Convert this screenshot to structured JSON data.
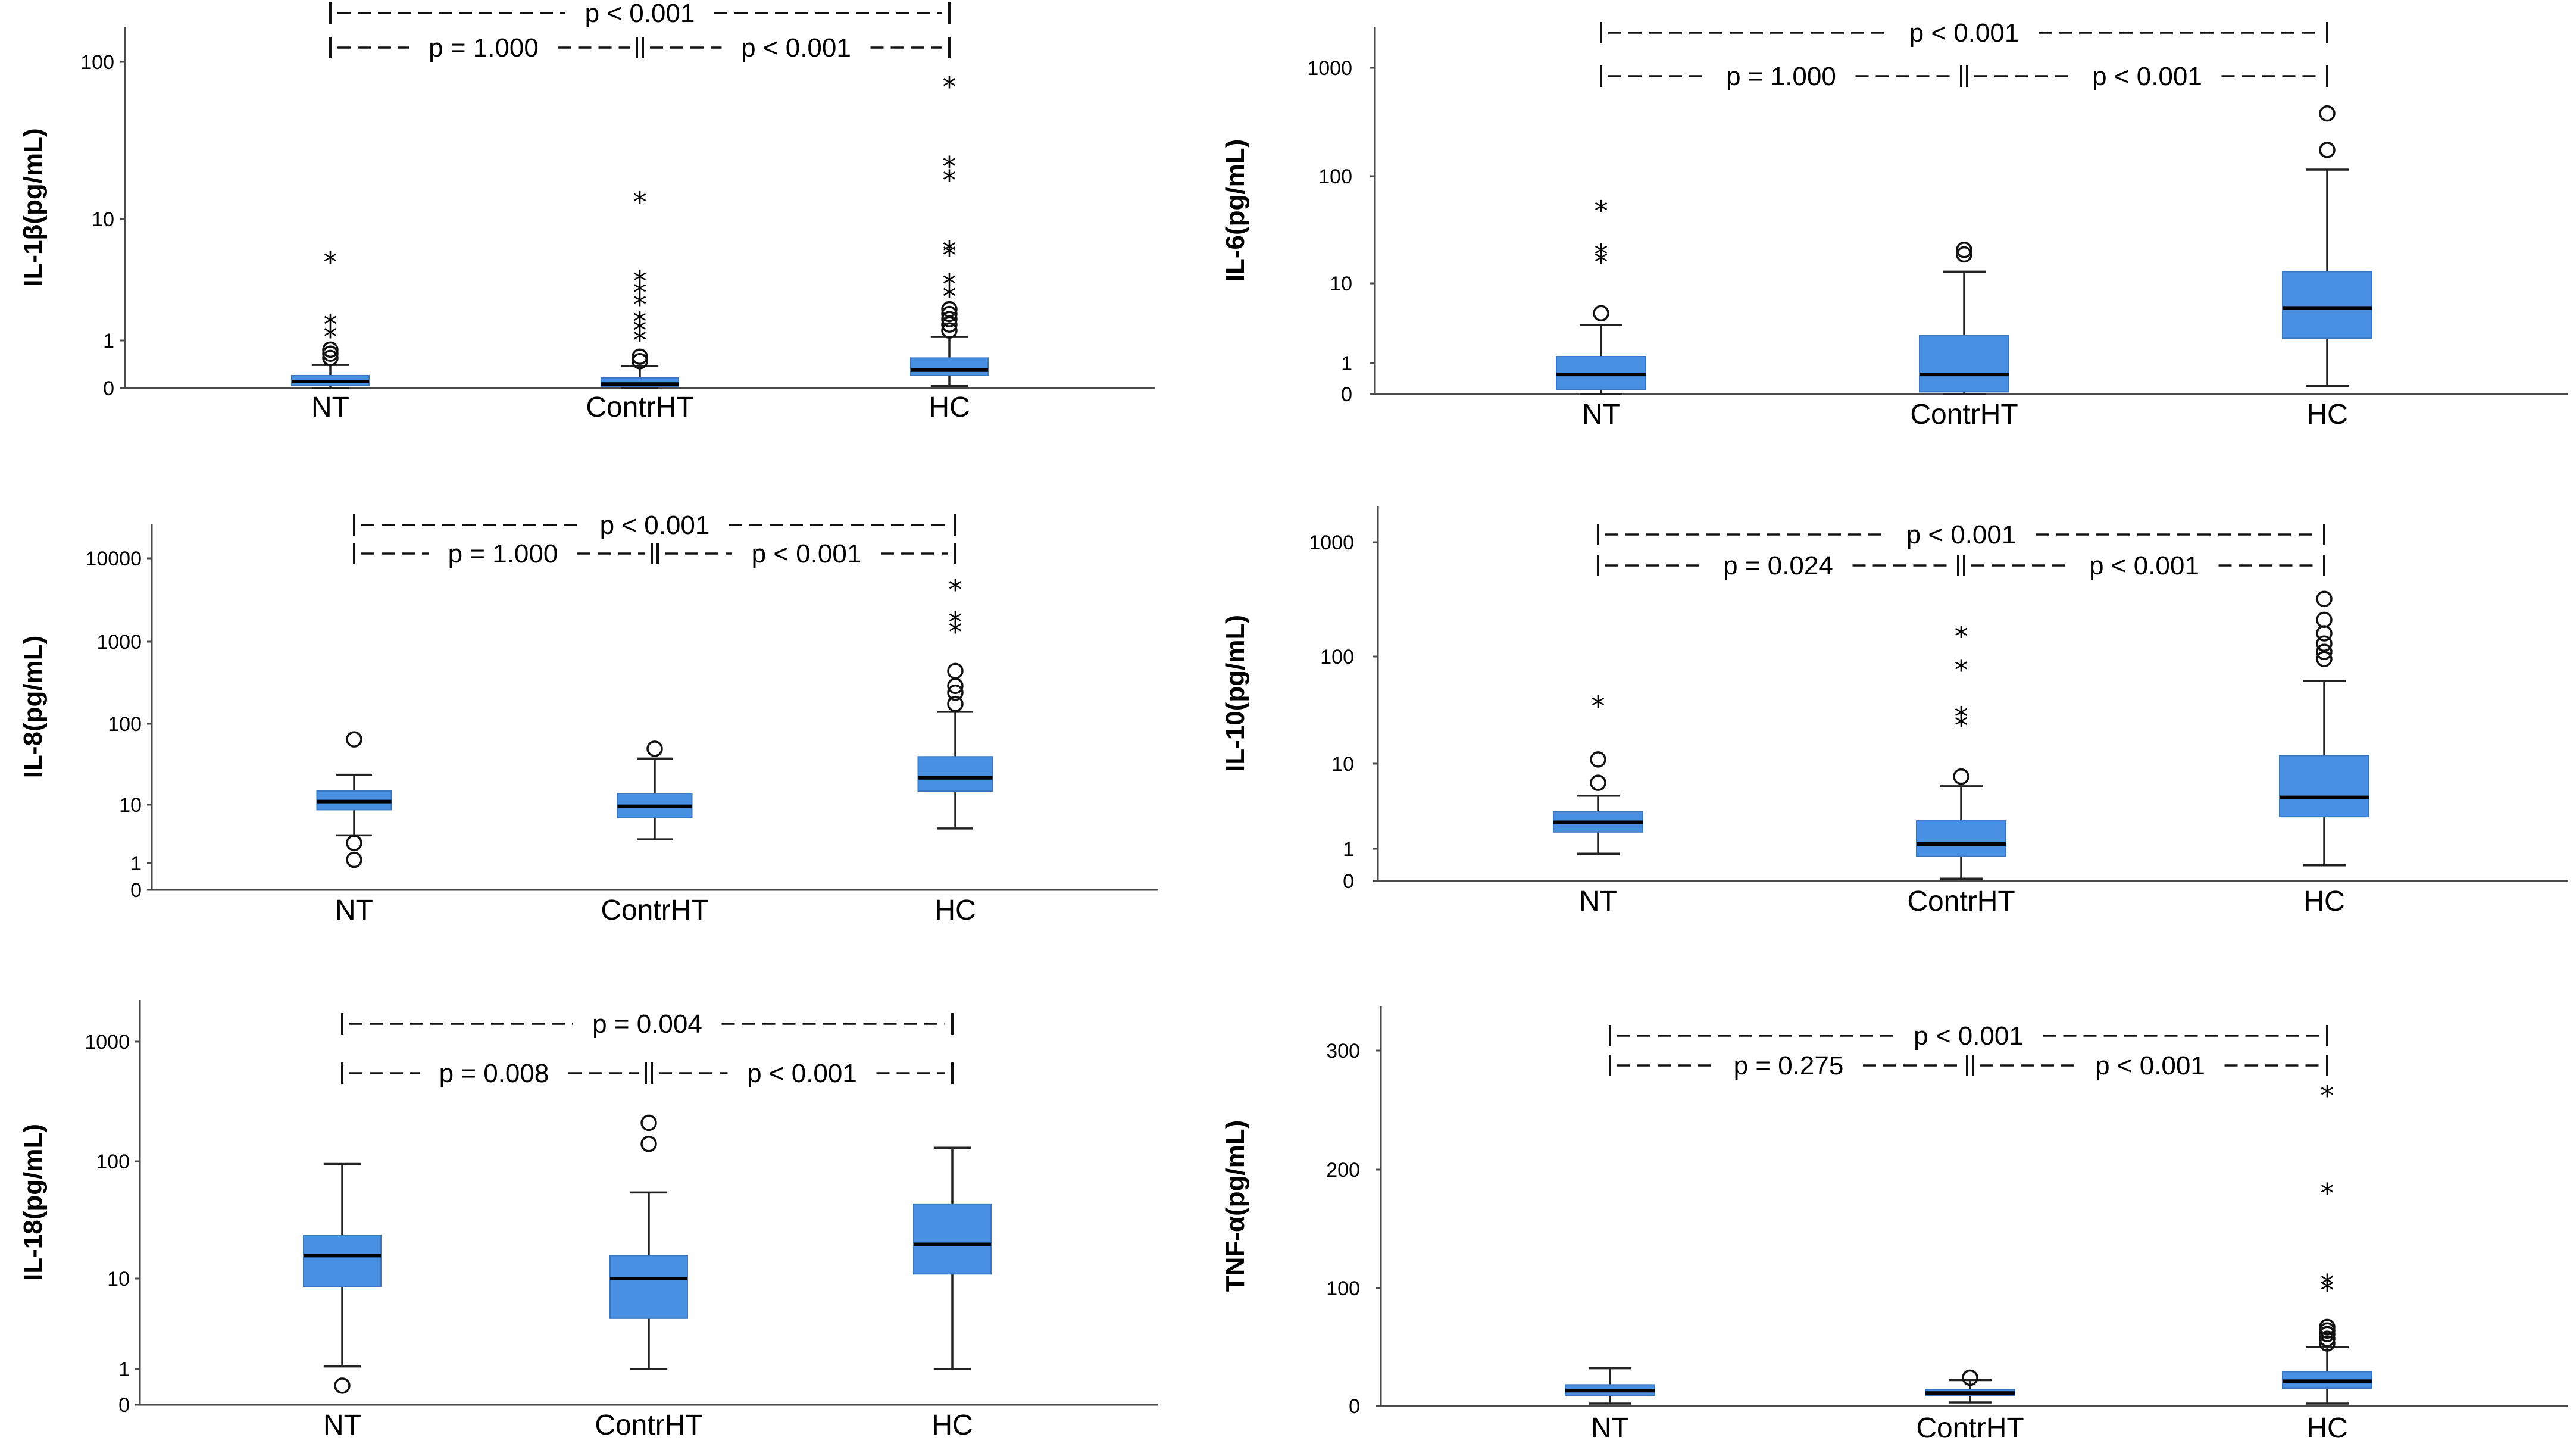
{
  "chart_data": [
    {
      "type": "box",
      "ylabel": "IL-1β(pg/mL)",
      "yscale": "log1p",
      "ylim": [
        0,
        160
      ],
      "yticks": [
        0,
        1,
        10,
        100
      ],
      "categories": [
        "NT",
        "ContrHT",
        "HC"
      ],
      "boxes": [
        {
          "whisker_low": 0.0,
          "q1": 0.04,
          "median": 0.1,
          "q3": 0.2,
          "whisker_high": 0.4,
          "outliers_circle": [
            0.55,
            0.65,
            0.75
          ],
          "outliers_star": [
            1.1,
            1.5,
            5.0
          ]
        },
        {
          "whisker_low": 0.0,
          "q1": 0.02,
          "median": 0.06,
          "q3": 0.16,
          "whisker_high": 0.38,
          "outliers_circle": [
            0.48,
            0.58
          ],
          "outliers_star": [
            1.0,
            1.3,
            1.6,
            2.3,
            2.9,
            3.6,
            13.0
          ]
        },
        {
          "whisker_low": 0.03,
          "q1": 0.2,
          "median": 0.3,
          "q3": 0.55,
          "whisker_high": 1.1,
          "outliers_circle": [
            1.3,
            1.5,
            1.7,
            1.9,
            2.1
          ],
          "outliers_star": [
            2.7,
            3.4,
            5.6,
            6.0,
            18,
            22,
            70
          ]
        }
      ],
      "comparisons": [
        {
          "label": "p < 0.001",
          "from": "NT",
          "to": "HC",
          "row": 1
        },
        {
          "label": "p = 1.000",
          "from": "NT",
          "to": "ContrHT",
          "row": 2
        },
        {
          "label": "p < 0.001",
          "from": "ContrHT",
          "to": "HC",
          "row": 2
        }
      ]
    },
    {
      "type": "box",
      "ylabel": "IL-6(pg/mL)",
      "yscale": "log1p",
      "ylim": [
        0,
        2000
      ],
      "yticks": [
        0,
        1,
        10,
        100,
        1000
      ],
      "categories": [
        "NT",
        "ContrHT",
        "HC"
      ],
      "boxes": [
        {
          "whisker_low": 0.0,
          "q1": 0.1,
          "median": 0.55,
          "q3": 1.3,
          "whisker_high": 3.5,
          "outliers_circle": [
            4.8
          ],
          "outliers_star": [
            16,
            19,
            48
          ]
        },
        {
          "whisker_low": 0.0,
          "q1": 0.05,
          "median": 0.55,
          "q3": 2.6,
          "whisker_high": 13,
          "outliers_circle": [
            19,
            21
          ],
          "outliers_star": []
        },
        {
          "whisker_low": 0.2,
          "q1": 2.4,
          "median": 5.5,
          "q3": 13,
          "whisker_high": 115,
          "outliers_circle": [
            175,
            380
          ],
          "outliers_star": []
        }
      ],
      "comparisons": [
        {
          "label": "p < 0.001",
          "from": "NT",
          "to": "HC",
          "row": 1
        },
        {
          "label": "p = 1.000",
          "from": "NT",
          "to": "ContrHT",
          "row": 2
        },
        {
          "label": "p < 0.001",
          "from": "ContrHT",
          "to": "HC",
          "row": 2
        }
      ]
    },
    {
      "type": "box",
      "ylabel": "IL-8(pg/mL)",
      "yscale": "log1p",
      "ylim": [
        0,
        30000
      ],
      "yticks": [
        0,
        1,
        10,
        100,
        1000,
        10000
      ],
      "categories": [
        "NT",
        "ContrHT",
        "HC"
      ],
      "boxes": [
        {
          "whisker_low": 3.5,
          "q1": 8.5,
          "median": 11,
          "q3": 15,
          "whisker_high": 24,
          "outliers_circle": [
            1.2,
            2.6,
            65
          ],
          "outliers_star": []
        },
        {
          "whisker_low": 3.0,
          "q1": 6.5,
          "median": 9.5,
          "q3": 14,
          "whisker_high": 38,
          "outliers_circle": [
            50
          ],
          "outliers_star": []
        },
        {
          "whisker_low": 4.5,
          "q1": 15,
          "median": 22,
          "q3": 40,
          "whisker_high": 140,
          "outliers_circle": [
            175,
            240,
            290,
            440
          ],
          "outliers_star": [
            1300,
            1700,
            4200
          ]
        }
      ],
      "comparisons": [
        {
          "label": "p < 0.001",
          "from": "NT",
          "to": "HC",
          "row": 1
        },
        {
          "label": "p = 1.000",
          "from": "NT",
          "to": "ContrHT",
          "row": 2
        },
        {
          "label": "p < 0.001",
          "from": "ContrHT",
          "to": "HC",
          "row": 2
        }
      ]
    },
    {
      "type": "box",
      "ylabel": "IL-10(pg/mL)",
      "yscale": "log1p",
      "ylim": [
        0,
        2000
      ],
      "yticks": [
        0,
        1,
        10,
        100,
        1000
      ],
      "categories": [
        "NT",
        "ContrHT",
        "HC"
      ],
      "boxes": [
        {
          "whisker_low": 0.8,
          "q1": 1.8,
          "median": 2.4,
          "q3": 3.2,
          "whisker_high": 4.8,
          "outliers_circle": [
            6.5,
            11
          ],
          "outliers_star": [
            35
          ]
        },
        {
          "whisker_low": 0.05,
          "q1": 0.7,
          "median": 1.2,
          "q3": 2.5,
          "whisker_high": 6.0,
          "outliers_circle": [
            7.5
          ],
          "outliers_star": [
            23,
            28,
            75,
            150
          ]
        },
        {
          "whisker_low": 0.4,
          "q1": 2.8,
          "median": 4.6,
          "q3": 12,
          "whisker_high": 60,
          "outliers_circle": [
            95,
            110,
            130,
            160,
            210,
            320
          ],
          "outliers_star": []
        }
      ],
      "comparisons": [
        {
          "label": "p < 0.001",
          "from": "NT",
          "to": "HC",
          "row": 1
        },
        {
          "label": "p = 0.024",
          "from": "NT",
          "to": "ContrHT",
          "row": 2
        },
        {
          "label": "p < 0.001",
          "from": "ContrHT",
          "to": "HC",
          "row": 2
        }
      ]
    },
    {
      "type": "box",
      "ylabel": "IL-18(pg/mL)",
      "yscale": "log1p",
      "ylim": [
        0,
        2000
      ],
      "yticks": [
        0,
        1,
        10,
        100,
        1000
      ],
      "categories": [
        "NT",
        "ContrHT",
        "HC"
      ],
      "boxes": [
        {
          "whisker_low": 1.1,
          "q1": 8.5,
          "median": 16,
          "q3": 24,
          "whisker_high": 95,
          "outliers_circle": [
            0.45
          ],
          "outliers_star": []
        },
        {
          "whisker_low": 1.0,
          "q1": 4.2,
          "median": 10,
          "q3": 16,
          "whisker_high": 55,
          "outliers_circle": [
            140,
            210
          ],
          "outliers_star": []
        },
        {
          "whisker_low": 1.0,
          "q1": 11,
          "median": 20,
          "q3": 44,
          "whisker_high": 130,
          "outliers_circle": [],
          "outliers_star": []
        }
      ],
      "comparisons": [
        {
          "label": "p = 0.004",
          "from": "NT",
          "to": "HC",
          "row": 1
        },
        {
          "label": "p = 0.008",
          "from": "NT",
          "to": "ContrHT",
          "row": 2
        },
        {
          "label": "p < 0.001",
          "from": "ContrHT",
          "to": "HC",
          "row": 2
        }
      ]
    },
    {
      "type": "box",
      "ylabel": "TNF-α(pg/mL)",
      "yscale": "linear",
      "ylim": [
        0,
        330
      ],
      "yticks": [
        0,
        100,
        200,
        300
      ],
      "categories": [
        "NT",
        "ContrHT",
        "HC"
      ],
      "boxes": [
        {
          "whisker_low": 2,
          "q1": 9,
          "median": 13,
          "q3": 18,
          "whisker_high": 32,
          "outliers_circle": [],
          "outliers_star": []
        },
        {
          "whisker_low": 3,
          "q1": 9,
          "median": 11,
          "q3": 14,
          "whisker_high": 22,
          "outliers_circle": [
            24
          ],
          "outliers_star": []
        },
        {
          "whisker_low": 2,
          "q1": 15,
          "median": 21,
          "q3": 29,
          "whisker_high": 50,
          "outliers_circle": [
            53,
            57,
            61,
            64,
            67
          ],
          "outliers_star": [
            98,
            103,
            180,
            262
          ]
        }
      ],
      "comparisons": [
        {
          "label": "p < 0.001",
          "from": "NT",
          "to": "HC",
          "row": 1
        },
        {
          "label": "p = 0.275",
          "from": "NT",
          "to": "ContrHT",
          "row": 2
        },
        {
          "label": "p < 0.001",
          "from": "ContrHT",
          "to": "HC",
          "row": 2
        }
      ]
    }
  ]
}
